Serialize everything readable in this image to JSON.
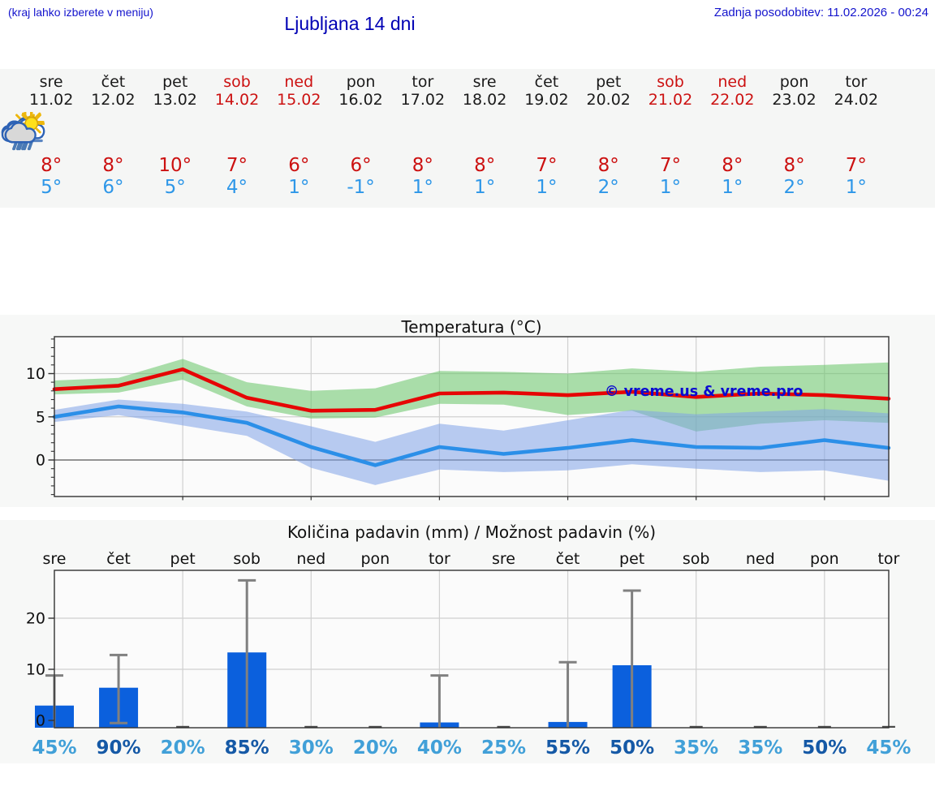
{
  "header": {
    "hint": "(kraj lahko izberete v meniju)",
    "title": "Ljubljana 14 dni",
    "updated": "Zadnja posodobitev: 11.02.2026 - 00:24"
  },
  "colors": {
    "header_blue": "#1414cd",
    "title_blue": "#0000b4",
    "temp_high": "#cc1111",
    "temp_low": "#2e97e8",
    "weekend": "#cc1111",
    "bar_blue": "#0b60dd",
    "whisker_gray": "#808080",
    "prob_high": "#1559a6",
    "prob_low": "#41a0d8",
    "watermark_blue": "#0a0ad0"
  },
  "forecast": {
    "days": [
      {
        "name": "sre",
        "date": "11.02",
        "weekend": false,
        "icon": "sun-cloud-shower",
        "high": "8°",
        "low": "5°"
      },
      {
        "name": "čet",
        "date": "12.02",
        "weekend": false,
        "icon": "sun-cloud-rain",
        "high": "8°",
        "low": "6°"
      },
      {
        "name": "pet",
        "date": "13.02",
        "weekend": false,
        "icon": "sun-fog",
        "high": "10°",
        "low": "5°"
      },
      {
        "name": "sob",
        "date": "14.02",
        "weekend": true,
        "icon": "clouds-rain",
        "high": "7°",
        "low": "4°"
      },
      {
        "name": "ned",
        "date": "15.02",
        "weekend": true,
        "icon": "sun-cloud",
        "high": "6°",
        "low": "1°"
      },
      {
        "name": "pon",
        "date": "16.02",
        "weekend": false,
        "icon": "sun-cloud",
        "high": "6°",
        "low": "-1°"
      },
      {
        "name": "tor",
        "date": "17.02",
        "weekend": false,
        "icon": "clouds-shower",
        "high": "8°",
        "low": "1°"
      },
      {
        "name": "sre",
        "date": "18.02",
        "weekend": false,
        "icon": "sun-cloud",
        "high": "8°",
        "low": "1°"
      },
      {
        "name": "čet",
        "date": "19.02",
        "weekend": false,
        "icon": "sun-cloud-shower",
        "high": "7°",
        "low": "1°"
      },
      {
        "name": "pet",
        "date": "20.02",
        "weekend": false,
        "icon": "sun-cloud-rain",
        "high": "8°",
        "low": "2°"
      },
      {
        "name": "sob",
        "date": "21.02",
        "weekend": true,
        "icon": "sun-cloud",
        "high": "7°",
        "low": "1°"
      },
      {
        "name": "ned",
        "date": "22.02",
        "weekend": true,
        "icon": "sun-cloud",
        "high": "8°",
        "low": "1°"
      },
      {
        "name": "pon",
        "date": "23.02",
        "weekend": false,
        "icon": "clouds",
        "high": "8°",
        "low": "2°"
      },
      {
        "name": "tor",
        "date": "24.02",
        "weekend": false,
        "icon": "sun-cloud",
        "high": "7°",
        "low": "1°"
      }
    ]
  },
  "chart_data": [
    {
      "type": "line",
      "title": "Temperatura (°C)",
      "x_labels": [
        "11.02",
        "12.02",
        "13.02",
        "14.02",
        "15.02",
        "16.02",
        "17.02",
        "18.02",
        "19.02",
        "20.02",
        "21.02",
        "22.02",
        "23.02",
        "24.02"
      ],
      "yticks": [
        0,
        5,
        10
      ],
      "ylim": [
        -4.2,
        14.3
      ],
      "grid": true,
      "watermark": "© vreme.us & vreme.pro",
      "series": [
        {
          "name": "max",
          "color": "#e60505",
          "band_color": "#66c466",
          "values": [
            8.2,
            8.6,
            10.5,
            7.2,
            5.7,
            5.8,
            7.7,
            7.8,
            7.5,
            7.9,
            7.3,
            7.7,
            7.5,
            7.1
          ],
          "band_upper": [
            9.2,
            9.5,
            11.7,
            9.0,
            8.0,
            8.3,
            10.3,
            10.2,
            10.0,
            10.6,
            10.2,
            10.8,
            11.0,
            11.3
          ],
          "band_lower": [
            7.6,
            7.8,
            9.3,
            6.2,
            4.8,
            4.9,
            6.5,
            6.4,
            5.2,
            5.7,
            3.3,
            4.2,
            4.6,
            4.3
          ]
        },
        {
          "name": "min",
          "color": "#2b8fe8",
          "band_color": "#7fa3e8",
          "values": [
            5.0,
            6.2,
            5.5,
            4.3,
            1.5,
            -0.6,
            1.5,
            0.7,
            1.4,
            2.3,
            1.5,
            1.4,
            2.3,
            1.4
          ],
          "band_upper": [
            5.8,
            7.0,
            6.5,
            5.6,
            3.9,
            2.1,
            4.2,
            3.4,
            4.6,
            5.8,
            5.3,
            5.6,
            5.9,
            5.4
          ],
          "band_lower": [
            4.4,
            5.2,
            4.0,
            2.8,
            -0.9,
            -2.9,
            -1.1,
            -1.4,
            -1.2,
            -0.5,
            -1.0,
            -1.4,
            -1.2,
            -2.4
          ]
        }
      ]
    },
    {
      "type": "bar",
      "title": "Količina padavin (mm) / Možnost padavin (%)",
      "categories": [
        "sre",
        "čet",
        "pet",
        "sob",
        "ned",
        "pon",
        "tor",
        "sre",
        "čet",
        "pet",
        "sob",
        "ned",
        "pon",
        "tor"
      ],
      "values": [
        2.9,
        6.4,
        0,
        13.3,
        0,
        0,
        -0.4,
        0,
        -0.3,
        10.8,
        0,
        0,
        0,
        0
      ],
      "whisker_high": [
        8.8,
        12.8,
        null,
        27.4,
        null,
        null,
        8.8,
        null,
        11.4,
        25.4,
        null,
        null,
        null,
        null
      ],
      "whisker_low": [
        null,
        -0.5,
        null,
        null,
        null,
        null,
        null,
        null,
        null,
        null,
        null,
        null,
        null,
        null
      ],
      "probabilities": [
        "45%",
        "90%",
        "20%",
        "85%",
        "30%",
        "20%",
        "40%",
        "25%",
        "55%",
        "50%",
        "35%",
        "35%",
        "50%",
        "45%"
      ],
      "yticks": [
        0,
        10,
        20
      ],
      "ylim": [
        -1.4,
        29.4
      ],
      "grid": true
    }
  ]
}
